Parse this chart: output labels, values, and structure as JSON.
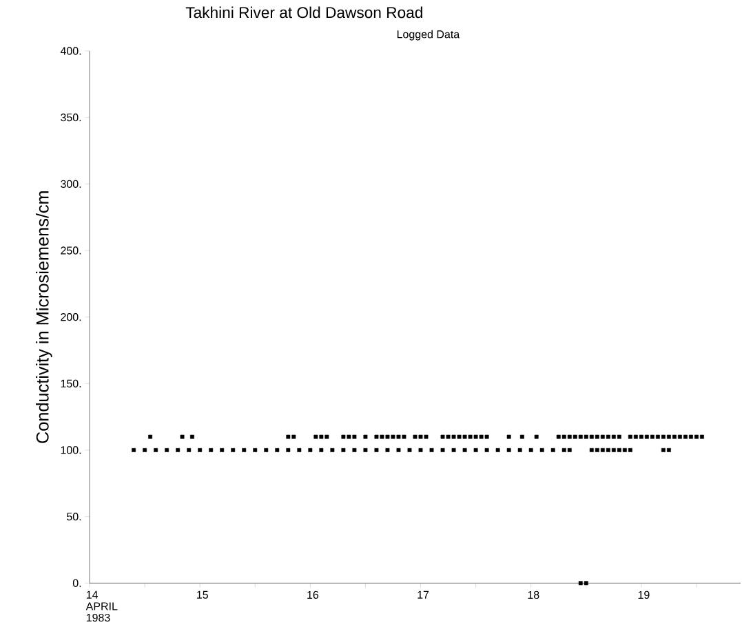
{
  "chart_data": {
    "type": "scatter",
    "title": "Takhini River at Old Dawson Road",
    "subtitle": "Logged Data",
    "ylabel": "Conductivity in Microsiemens/cm",
    "marker": "square",
    "xlim": [
      14,
      19.9
    ],
    "ylim": [
      0,
      400
    ],
    "xticks": [
      {
        "value": 14,
        "label": "14 APRIL 1983"
      },
      {
        "value": 14.5,
        "label": null
      },
      15,
      {
        "value": 15.5,
        "label": null
      },
      16,
      {
        "value": 16.5,
        "label": null
      },
      17,
      {
        "value": 17.5,
        "label": null
      },
      18,
      {
        "value": 18.5,
        "label": null
      },
      19,
      {
        "value": 19.5,
        "label": null
      }
    ],
    "yticks": [
      {
        "value": 0,
        "label": "0."
      },
      {
        "value": 50,
        "label": "50."
      },
      {
        "value": 100,
        "label": "100."
      },
      {
        "value": 150,
        "label": "150."
      },
      {
        "value": 200,
        "label": "200."
      },
      {
        "value": 250,
        "label": "250."
      },
      {
        "value": 300,
        "label": "300."
      },
      {
        "value": 350,
        "label": "350."
      },
      {
        "value": 400,
        "label": "400."
      }
    ],
    "series": [
      {
        "color": "#000000",
        "x": [
          14.4,
          14.5,
          14.6,
          14.7,
          14.8,
          14.9,
          15.0,
          15.1,
          15.2,
          15.3,
          15.4,
          15.5,
          15.6,
          15.7,
          15.8,
          15.9,
          16.0,
          16.1,
          16.2,
          16.3,
          16.4,
          16.5,
          16.6,
          16.7,
          16.8,
          16.9,
          17.0,
          17.1,
          17.2,
          17.3,
          17.4,
          17.5,
          17.6,
          17.7,
          17.8,
          17.9,
          18.0,
          18.1,
          18.2,
          18.3,
          18.35,
          18.55,
          18.6,
          18.65,
          18.7,
          18.75,
          18.8,
          18.85,
          18.9,
          19.2,
          19.25,
          14.55,
          14.84,
          14.93,
          15.8,
          15.85,
          16.05,
          16.1,
          16.15,
          16.3,
          16.35,
          16.4,
          16.5,
          16.6,
          16.65,
          16.7,
          16.75,
          16.8,
          16.85,
          16.95,
          17.0,
          17.05,
          17.2,
          17.25,
          17.3,
          17.35,
          17.4,
          17.45,
          17.5,
          17.55,
          17.6,
          17.8,
          17.92,
          18.05,
          18.25,
          18.3,
          18.35,
          18.4,
          18.45,
          18.5,
          18.55,
          18.6,
          18.65,
          18.7,
          18.75,
          18.8,
          18.9,
          18.95,
          19.0,
          19.05,
          19.1,
          19.15,
          19.2,
          19.25,
          19.3,
          19.35,
          19.4,
          19.45,
          19.5,
          19.55,
          18.45,
          18.5
        ],
        "values": [
          100,
          100,
          100,
          100,
          100,
          100,
          100,
          100,
          100,
          100,
          100,
          100,
          100,
          100,
          100,
          100,
          100,
          100,
          100,
          100,
          100,
          100,
          100,
          100,
          100,
          100,
          100,
          100,
          100,
          100,
          100,
          100,
          100,
          100,
          100,
          100,
          100,
          100,
          100,
          100,
          100,
          100,
          100,
          100,
          100,
          100,
          100,
          100,
          100,
          100,
          100,
          110,
          110,
          110,
          110,
          110,
          110,
          110,
          110,
          110,
          110,
          110,
          110,
          110,
          110,
          110,
          110,
          110,
          110,
          110,
          110,
          110,
          110,
          110,
          110,
          110,
          110,
          110,
          110,
          110,
          110,
          110,
          110,
          110,
          110,
          110,
          110,
          110,
          110,
          110,
          110,
          110,
          110,
          110,
          110,
          110,
          110,
          110,
          110,
          110,
          110,
          110,
          110,
          110,
          110,
          110,
          110,
          110,
          110,
          110,
          0,
          0
        ]
      }
    ]
  }
}
